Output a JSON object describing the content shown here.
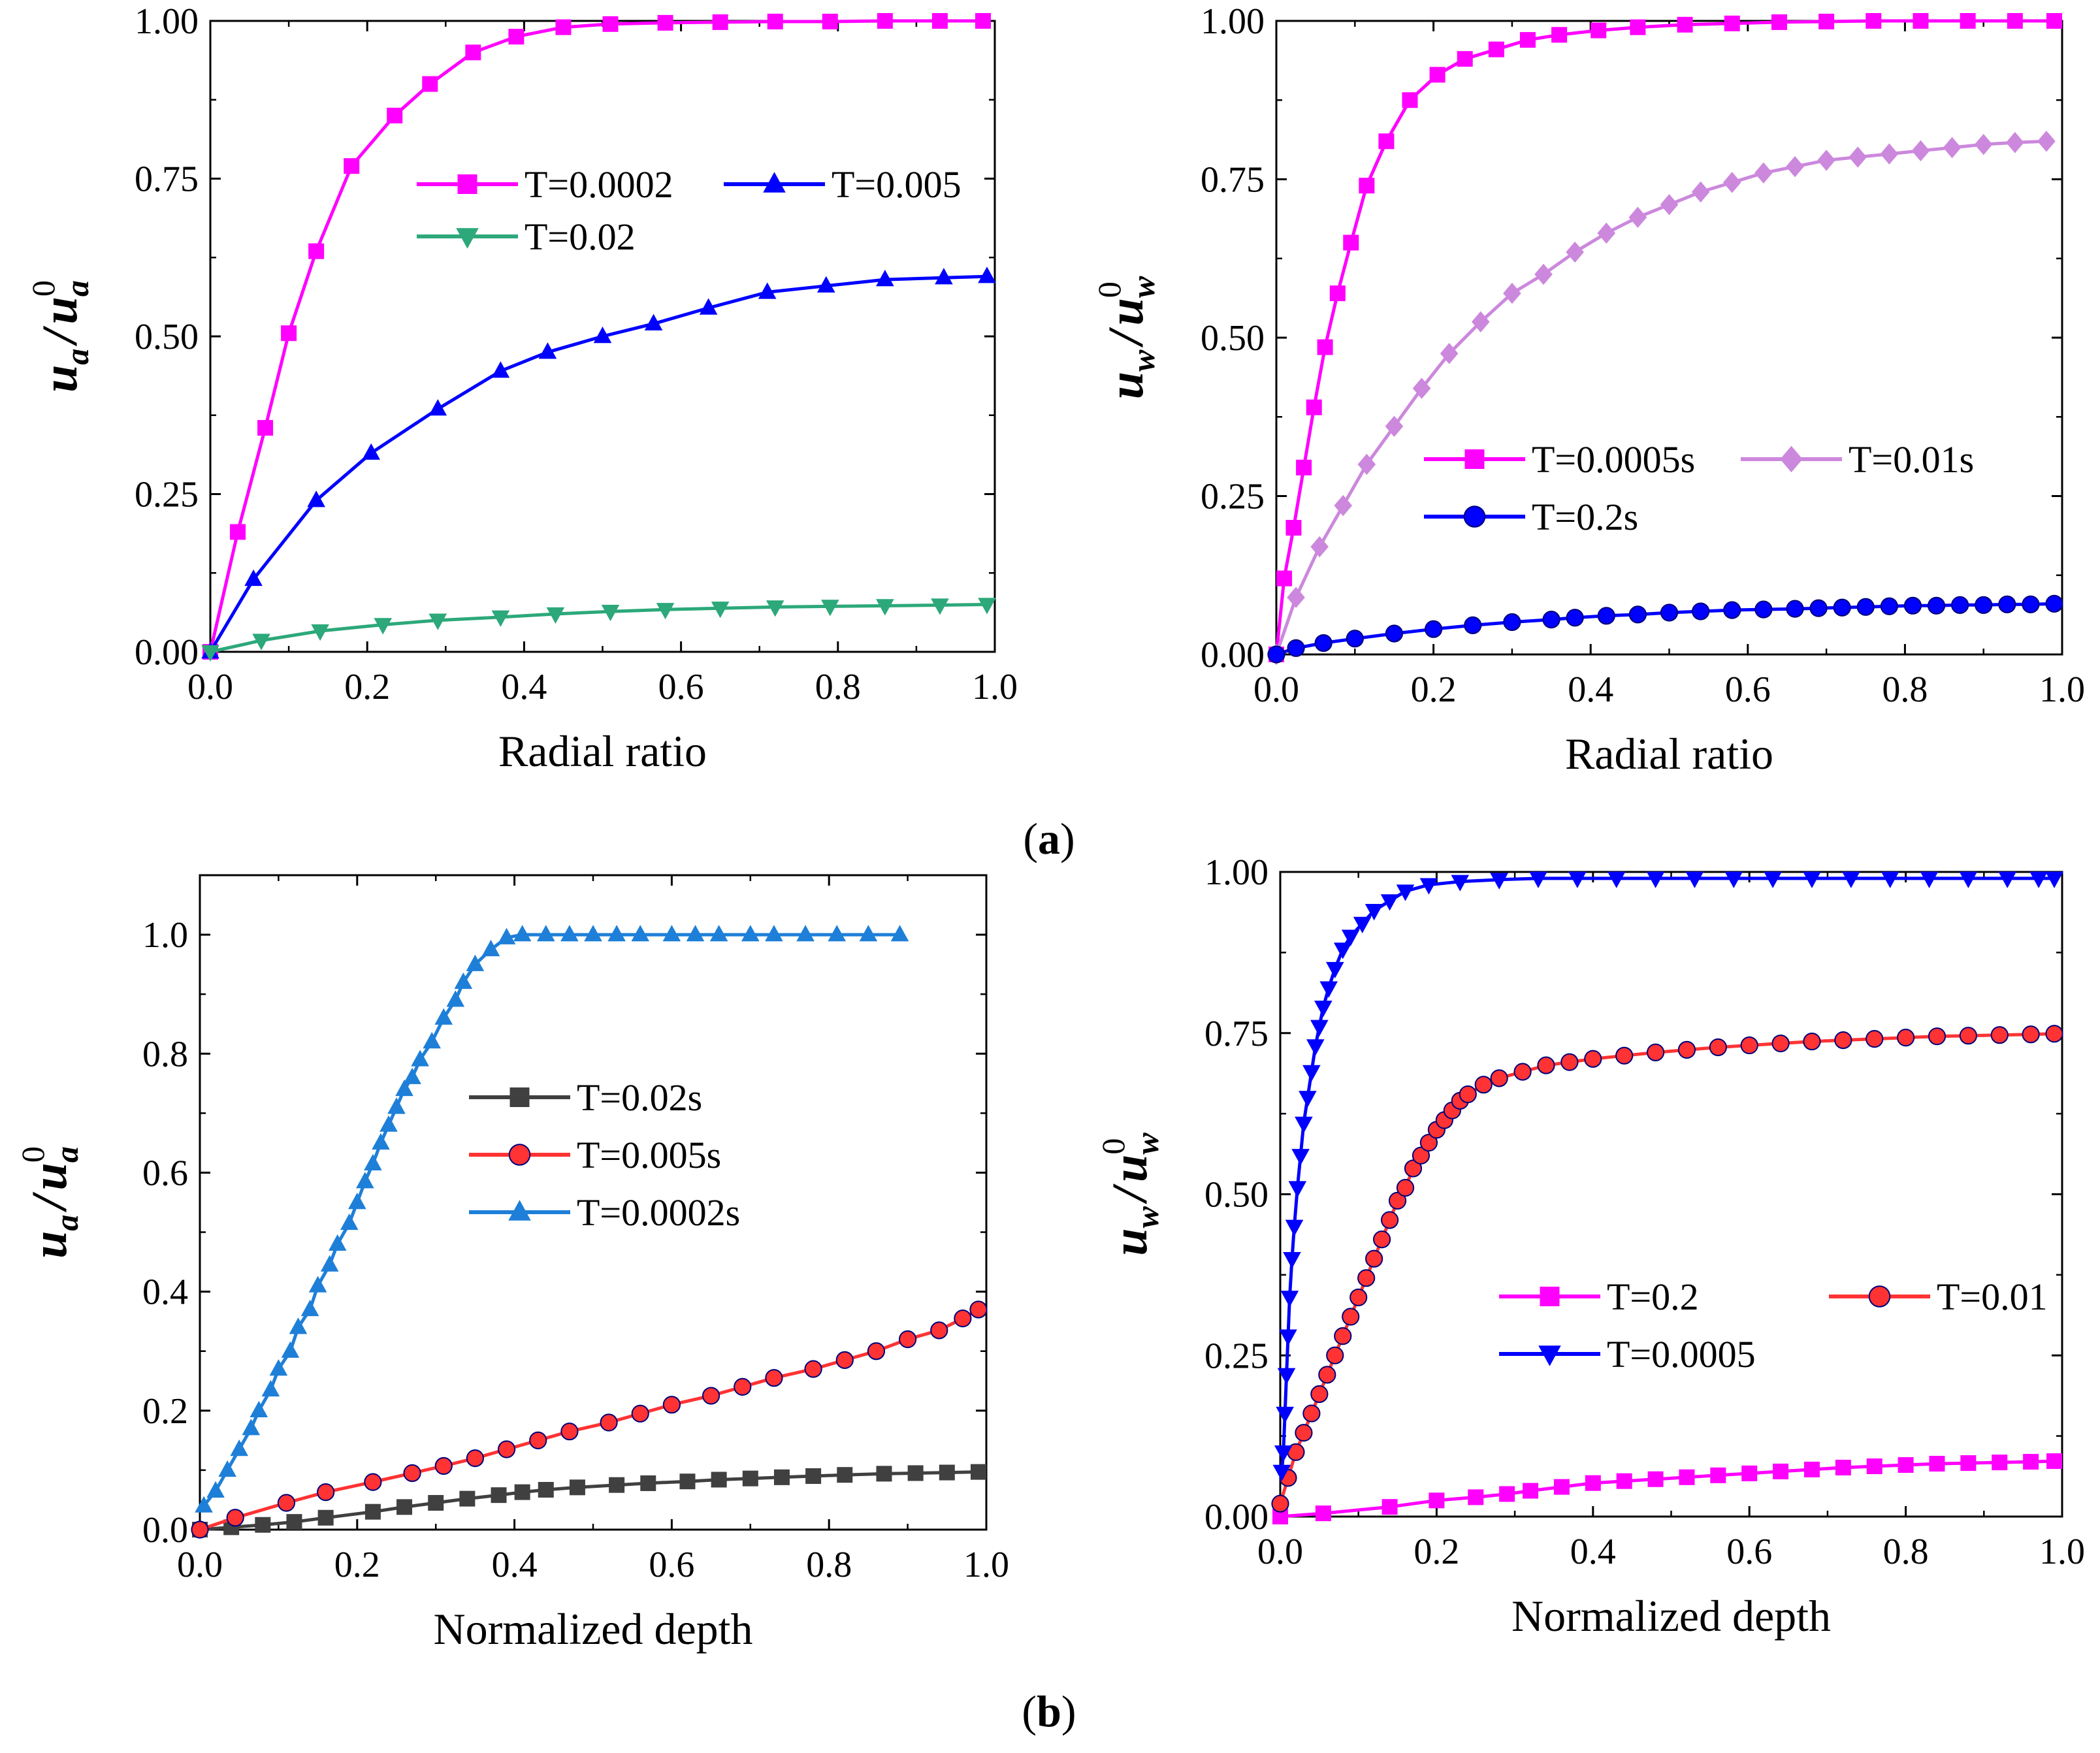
{
  "figure_labels": {
    "a": "a",
    "b": "b"
  },
  "chart_data": [
    {
      "id": "a-left",
      "type": "line",
      "xlabel": "Radial ratio",
      "ylabel": {
        "base": "u",
        "sub": "a",
        "sup": "0",
        "text": "u_a / u_a^0"
      },
      "xlim": [
        0,
        1.0
      ],
      "ylim": [
        0,
        1.0
      ],
      "xticks": [
        "0.0",
        "0.2",
        "0.4",
        "0.6",
        "0.8",
        "1.0"
      ],
      "yticks": [
        "0.00",
        "0.25",
        "0.50",
        "0.75",
        "1.00"
      ],
      "legend": "top-right",
      "series": [
        {
          "name": "T=0.0002",
          "color": "#ff00ff",
          "marker": "square",
          "x": [
            0,
            0.035,
            0.07,
            0.1,
            0.135,
            0.18,
            0.235,
            0.28,
            0.335,
            0.39,
            0.45,
            0.51,
            0.58,
            0.65,
            0.72,
            0.79,
            0.86,
            0.93,
            0.985
          ],
          "y": [
            0,
            0.19,
            0.355,
            0.505,
            0.635,
            0.77,
            0.85,
            0.9,
            0.95,
            0.975,
            0.99,
            0.995,
            0.997,
            0.998,
            0.999,
            0.999,
            1.0,
            1.0,
            1.0
          ]
        },
        {
          "name": "T=0.005",
          "color": "#0000ff",
          "marker": "triangle-up",
          "x": [
            0,
            0.055,
            0.135,
            0.205,
            0.29,
            0.37,
            0.43,
            0.5,
            0.565,
            0.635,
            0.71,
            0.785,
            0.86,
            0.935,
            0.99
          ],
          "y": [
            0,
            0.115,
            0.24,
            0.315,
            0.385,
            0.445,
            0.475,
            0.5,
            0.52,
            0.545,
            0.57,
            0.58,
            0.59,
            0.593,
            0.595
          ]
        },
        {
          "name": "T=0.02",
          "color": "#2ca87a",
          "marker": "triangle-down",
          "x": [
            0,
            0.065,
            0.14,
            0.22,
            0.29,
            0.37,
            0.44,
            0.51,
            0.58,
            0.65,
            0.72,
            0.79,
            0.86,
            0.93,
            0.99
          ],
          "y": [
            0,
            0.018,
            0.033,
            0.043,
            0.05,
            0.055,
            0.06,
            0.064,
            0.067,
            0.069,
            0.071,
            0.072,
            0.073,
            0.074,
            0.075
          ]
        }
      ]
    },
    {
      "id": "a-right",
      "type": "line",
      "xlabel": "Radial ratio",
      "ylabel": {
        "base": "u",
        "sub": "w",
        "sup": "0",
        "text": "u_w / u_w^0"
      },
      "xlim": [
        0,
        1.0
      ],
      "ylim": [
        0,
        1.0
      ],
      "xticks": [
        "0.0",
        "0.2",
        "0.4",
        "0.6",
        "0.8",
        "1.0"
      ],
      "yticks": [
        "0.00",
        "0.25",
        "0.50",
        "0.75",
        "1.00"
      ],
      "legend": "center-right",
      "series": [
        {
          "name": "T=0.0005s",
          "color": "#ff00ff",
          "marker": "square",
          "x": [
            0,
            0.01,
            0.022,
            0.035,
            0.048,
            0.062,
            0.078,
            0.095,
            0.115,
            0.14,
            0.17,
            0.205,
            0.24,
            0.28,
            0.32,
            0.36,
            0.41,
            0.46,
            0.52,
            0.58,
            0.64,
            0.7,
            0.76,
            0.82,
            0.88,
            0.94,
            0.99
          ],
          "y": [
            0,
            0.12,
            0.2,
            0.295,
            0.39,
            0.485,
            0.57,
            0.65,
            0.74,
            0.81,
            0.875,
            0.915,
            0.94,
            0.955,
            0.97,
            0.978,
            0.985,
            0.99,
            0.994,
            0.996,
            0.998,
            0.999,
            1.0,
            1.0,
            1.0,
            1.0,
            1.0
          ]
        },
        {
          "name": "T=0.01s",
          "color": "#cc88dd",
          "marker": "diamond",
          "x": [
            0,
            0.025,
            0.055,
            0.085,
            0.115,
            0.15,
            0.185,
            0.22,
            0.26,
            0.3,
            0.34,
            0.38,
            0.42,
            0.46,
            0.5,
            0.54,
            0.58,
            0.62,
            0.66,
            0.7,
            0.74,
            0.78,
            0.82,
            0.86,
            0.9,
            0.94,
            0.98
          ],
          "y": [
            0,
            0.09,
            0.17,
            0.235,
            0.3,
            0.36,
            0.42,
            0.475,
            0.525,
            0.57,
            0.6,
            0.635,
            0.665,
            0.69,
            0.71,
            0.73,
            0.745,
            0.76,
            0.77,
            0.78,
            0.785,
            0.79,
            0.795,
            0.8,
            0.805,
            0.808,
            0.81
          ]
        },
        {
          "name": "T=0.2s",
          "color": "#0000ff",
          "marker": "circle",
          "x": [
            0,
            0.025,
            0.06,
            0.1,
            0.15,
            0.2,
            0.25,
            0.3,
            0.35,
            0.38,
            0.42,
            0.46,
            0.5,
            0.54,
            0.58,
            0.62,
            0.66,
            0.69,
            0.72,
            0.75,
            0.78,
            0.81,
            0.84,
            0.87,
            0.9,
            0.93,
            0.96,
            0.99
          ],
          "y": [
            0,
            0.01,
            0.018,
            0.025,
            0.033,
            0.04,
            0.046,
            0.051,
            0.055,
            0.058,
            0.061,
            0.063,
            0.066,
            0.068,
            0.07,
            0.071,
            0.072,
            0.073,
            0.074,
            0.075,
            0.076,
            0.077,
            0.077,
            0.078,
            0.078,
            0.079,
            0.079,
            0.08
          ]
        }
      ]
    },
    {
      "id": "b-left",
      "type": "line",
      "xlabel": "Normalized depth",
      "ylabel": {
        "base": "u",
        "sub": "a",
        "sup": "0",
        "text": "u_a / u_a^0"
      },
      "xlim": [
        0,
        1.0
      ],
      "ylim": [
        0,
        1.1
      ],
      "xticks": [
        "0.0",
        "0.2",
        "0.4",
        "0.6",
        "0.8",
        "1.0"
      ],
      "yticks": [
        "0.0",
        "0.2",
        "0.4",
        "0.6",
        "0.8",
        "1.0"
      ],
      "legend": "center",
      "series": [
        {
          "name": "T=0.02s",
          "color": "#404040",
          "marker": "square",
          "x": [
            0,
            0.04,
            0.08,
            0.12,
            0.16,
            0.22,
            0.26,
            0.3,
            0.34,
            0.38,
            0.41,
            0.44,
            0.48,
            0.53,
            0.57,
            0.62,
            0.66,
            0.7,
            0.74,
            0.78,
            0.82,
            0.87,
            0.91,
            0.95,
            0.99
          ],
          "y": [
            0,
            0.004,
            0.008,
            0.013,
            0.02,
            0.03,
            0.038,
            0.045,
            0.052,
            0.058,
            0.063,
            0.067,
            0.071,
            0.075,
            0.078,
            0.081,
            0.084,
            0.086,
            0.088,
            0.09,
            0.092,
            0.094,
            0.095,
            0.096,
            0.097
          ]
        },
        {
          "name": "T=0.005s",
          "color": "#ff3333",
          "marker": "circle",
          "x": [
            0,
            0.045,
            0.11,
            0.16,
            0.22,
            0.27,
            0.31,
            0.35,
            0.39,
            0.43,
            0.47,
            0.52,
            0.56,
            0.6,
            0.65,
            0.69,
            0.73,
            0.78,
            0.82,
            0.86,
            0.9,
            0.94,
            0.97,
            0.99
          ],
          "y": [
            0,
            0.02,
            0.045,
            0.063,
            0.08,
            0.095,
            0.107,
            0.12,
            0.135,
            0.15,
            0.165,
            0.18,
            0.195,
            0.21,
            0.225,
            0.24,
            0.255,
            0.27,
            0.285,
            0.3,
            0.32,
            0.335,
            0.355,
            0.37
          ]
        },
        {
          "name": "T=0.0002s",
          "color": "#1e7fd8",
          "marker": "triangle-up",
          "x": [
            0.005,
            0.02,
            0.035,
            0.05,
            0.065,
            0.075,
            0.09,
            0.1,
            0.115,
            0.125,
            0.14,
            0.15,
            0.165,
            0.175,
            0.19,
            0.2,
            0.21,
            0.22,
            0.23,
            0.24,
            0.25,
            0.26,
            0.27,
            0.28,
            0.295,
            0.31,
            0.325,
            0.335,
            0.35,
            0.37,
            0.39,
            0.41,
            0.44,
            0.47,
            0.5,
            0.53,
            0.56,
            0.6,
            0.63,
            0.66,
            0.7,
            0.73,
            0.77,
            0.81,
            0.85,
            0.89
          ],
          "y": [
            0.04,
            0.065,
            0.1,
            0.135,
            0.17,
            0.2,
            0.235,
            0.27,
            0.3,
            0.34,
            0.37,
            0.41,
            0.445,
            0.48,
            0.515,
            0.55,
            0.585,
            0.615,
            0.65,
            0.68,
            0.71,
            0.74,
            0.76,
            0.79,
            0.82,
            0.86,
            0.89,
            0.92,
            0.95,
            0.975,
            0.995,
            1.0,
            1.0,
            1.0,
            1.0,
            1.0,
            1.0,
            1.0,
            1.0,
            1.0,
            1.0,
            1.0,
            1.0,
            1.0,
            1.0,
            1.0
          ]
        }
      ]
    },
    {
      "id": "b-right",
      "type": "line",
      "xlabel": "Normalized depth",
      "ylabel": {
        "base": "u",
        "sub": "w",
        "sup": "0",
        "text": "u_w / u_w^0"
      },
      "xlim": [
        0,
        1.0
      ],
      "ylim": [
        0,
        1.0
      ],
      "xticks": [
        "0.0",
        "0.2",
        "0.4",
        "0.6",
        "0.8",
        "1.0"
      ],
      "yticks": [
        "0.00",
        "0.25",
        "0.50",
        "0.75",
        "1.00"
      ],
      "legend": "center-right",
      "series": [
        {
          "name": "T=0.2",
          "color": "#ff00ff",
          "marker": "square",
          "x": [
            0,
            0.055,
            0.14,
            0.2,
            0.25,
            0.29,
            0.32,
            0.36,
            0.4,
            0.44,
            0.48,
            0.52,
            0.56,
            0.6,
            0.64,
            0.68,
            0.72,
            0.76,
            0.8,
            0.84,
            0.88,
            0.92,
            0.96,
            0.99
          ],
          "y": [
            0,
            0.005,
            0.015,
            0.025,
            0.03,
            0.035,
            0.04,
            0.046,
            0.052,
            0.055,
            0.058,
            0.061,
            0.064,
            0.067,
            0.07,
            0.073,
            0.076,
            0.078,
            0.08,
            0.082,
            0.083,
            0.084,
            0.085,
            0.086
          ]
        },
        {
          "name": "T=0.01",
          "color": "#ff3333",
          "marker": "circle",
          "x": [
            0,
            0.01,
            0.02,
            0.03,
            0.04,
            0.05,
            0.06,
            0.07,
            0.08,
            0.09,
            0.1,
            0.11,
            0.12,
            0.13,
            0.14,
            0.15,
            0.16,
            0.17,
            0.18,
            0.19,
            0.2,
            0.21,
            0.22,
            0.23,
            0.24,
            0.26,
            0.28,
            0.31,
            0.34,
            0.37,
            0.4,
            0.44,
            0.48,
            0.52,
            0.56,
            0.6,
            0.64,
            0.68,
            0.72,
            0.76,
            0.8,
            0.84,
            0.88,
            0.92,
            0.96,
            0.99
          ],
          "y": [
            0.02,
            0.06,
            0.1,
            0.13,
            0.16,
            0.19,
            0.22,
            0.25,
            0.28,
            0.31,
            0.34,
            0.37,
            0.4,
            0.43,
            0.46,
            0.49,
            0.51,
            0.54,
            0.56,
            0.58,
            0.6,
            0.615,
            0.63,
            0.645,
            0.655,
            0.67,
            0.68,
            0.69,
            0.7,
            0.705,
            0.71,
            0.715,
            0.72,
            0.724,
            0.728,
            0.731,
            0.734,
            0.737,
            0.739,
            0.741,
            0.743,
            0.745,
            0.746,
            0.747,
            0.748,
            0.749
          ]
        },
        {
          "name": "T=0.0005",
          "color": "#0000ff",
          "marker": "triangle-down",
          "x": [
            0.002,
            0.004,
            0.006,
            0.008,
            0.01,
            0.012,
            0.015,
            0.018,
            0.022,
            0.026,
            0.03,
            0.035,
            0.04,
            0.045,
            0.05,
            0.055,
            0.062,
            0.07,
            0.08,
            0.09,
            0.105,
            0.12,
            0.14,
            0.16,
            0.19,
            0.23,
            0.28,
            0.33,
            0.38,
            0.43,
            0.48,
            0.53,
            0.58,
            0.63,
            0.68,
            0.73,
            0.78,
            0.83,
            0.88,
            0.93,
            0.97,
            0.99
          ],
          "y": [
            0.07,
            0.1,
            0.16,
            0.22,
            0.28,
            0.34,
            0.4,
            0.45,
            0.51,
            0.56,
            0.61,
            0.65,
            0.69,
            0.73,
            0.76,
            0.79,
            0.82,
            0.85,
            0.88,
            0.9,
            0.92,
            0.94,
            0.955,
            0.97,
            0.98,
            0.985,
            0.988,
            0.99,
            0.99,
            0.99,
            0.99,
            0.99,
            0.99,
            0.99,
            0.99,
            0.99,
            0.99,
            0.99,
            0.99,
            0.99,
            0.99,
            0.99
          ]
        }
      ]
    }
  ]
}
